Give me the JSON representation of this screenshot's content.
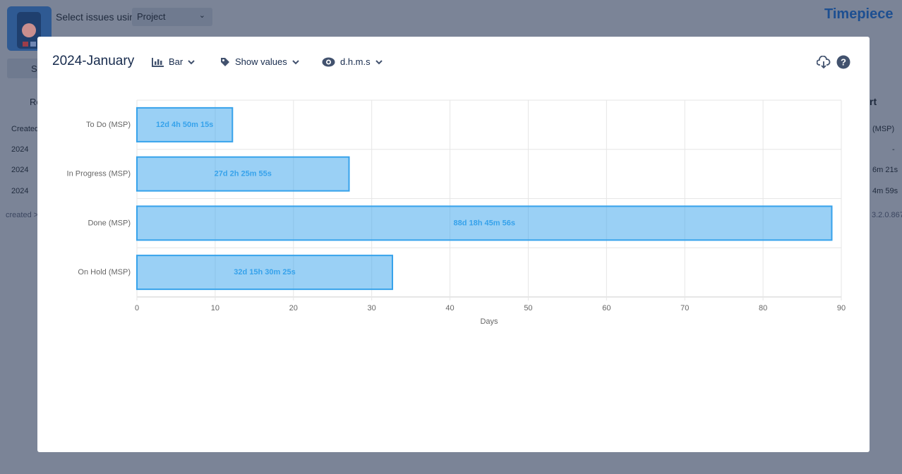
{
  "app": {
    "select_label": "Select issues using",
    "select_value": "Project",
    "brand": "Timepiece",
    "clipped": [
      "St",
      "Ro",
      "rt"
    ],
    "table_header": "Created",
    "rows": [
      "2024",
      "2024",
      "2024"
    ],
    "right_header": "(MSP)",
    "right_cells": [
      "-",
      "6m 21s",
      "4m 59s"
    ],
    "footer": "created >",
    "version": "3.2.0.867"
  },
  "modal": {
    "title": "2024-January",
    "chart_type_menu": "Bar",
    "values_menu": "Show values",
    "format_menu": "d.h.m.s"
  },
  "chart_data": {
    "type": "bar",
    "orientation": "horizontal",
    "categories": [
      "To Do (MSP)",
      "In Progress (MSP)",
      "Done (MSP)",
      "On Hold (MSP)"
    ],
    "values": [
      12.2016,
      27.1013,
      88.7819,
      32.6461
    ],
    "value_labels": [
      "12d 4h 50m 15s",
      "27d 2h 25m 55s",
      "88d 18h 45m 56s",
      "32d 15h 30m 25s"
    ],
    "color": "#36a2eb",
    "xlabel": "Days",
    "xlim": [
      0,
      90
    ],
    "xticks": [
      0,
      10,
      20,
      30,
      40,
      50,
      60,
      70,
      80,
      90
    ],
    "grid": true
  }
}
